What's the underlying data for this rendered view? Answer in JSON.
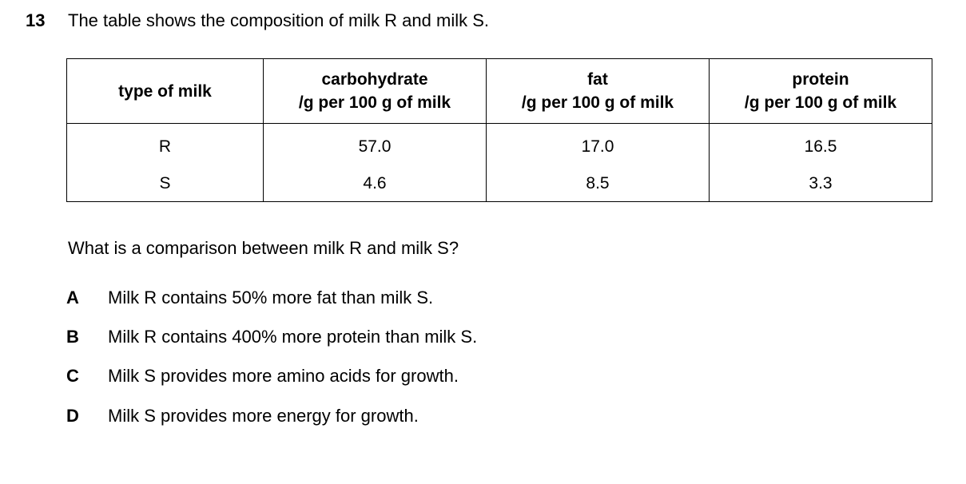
{
  "question": {
    "number": "13",
    "stem": "The table shows the composition of milk R and milk S.",
    "prompt": "What is a comparison between milk R and milk S?"
  },
  "table": {
    "headers": [
      {
        "line1": "type of milk",
        "line2": ""
      },
      {
        "line1": "carbohydrate",
        "line2": "/g per 100 g of milk"
      },
      {
        "line1": "fat",
        "line2": "/g per 100 g of milk"
      },
      {
        "line1": "protein",
        "line2": "/g per 100 g of milk"
      }
    ],
    "rows": [
      [
        "R",
        "57.0",
        "17.0",
        "16.5"
      ],
      [
        "S",
        "4.6",
        "8.5",
        "3.3"
      ]
    ]
  },
  "options": [
    {
      "letter": "A",
      "text": "Milk R contains 50% more fat than milk S."
    },
    {
      "letter": "B",
      "text": "Milk R contains 400% more protein than milk S."
    },
    {
      "letter": "C",
      "text": "Milk S provides more amino acids for growth."
    },
    {
      "letter": "D",
      "text": "Milk S provides more energy for growth."
    }
  ]
}
